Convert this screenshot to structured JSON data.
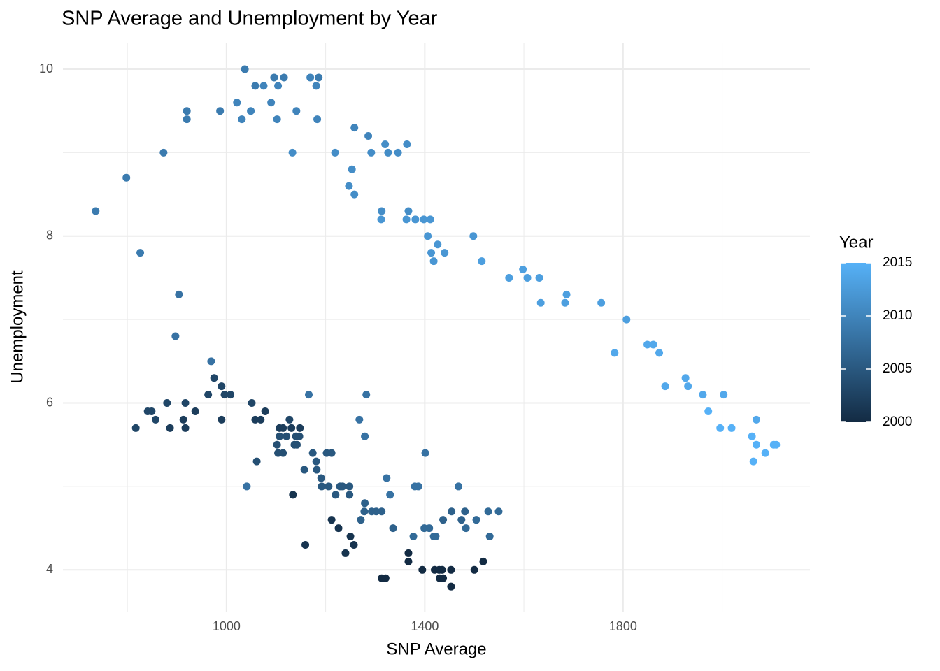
{
  "chart_data": {
    "type": "scatter",
    "title": "SNP Average and Unemployment by Year",
    "x_label": "SNP Average",
    "y_label": "Unemployment",
    "legend_title": "Year",
    "x": [
      736,
      798,
      826,
      873,
      904,
      897,
      920,
      920,
      987,
      1021,
      1031,
      1037,
      1049,
      1058,
      1075,
      1090,
      1096,
      1102,
      1104,
      1116,
      1133,
      1141,
      1169,
      1181,
      1186,
      1183,
      1219,
      1247,
      1253,
      1258,
      1258,
      1286,
      1292,
      1312,
      1313,
      1320,
      1326,
      1346,
      1364,
      1363,
      1367,
      1381,
      1398,
      1411,
      1406,
      1413,
      1418,
      1426,
      1440,
      1498,
      1515,
      1570,
      1598,
      1607,
      1631,
      1634,
      1683,
      1686,
      1756,
      1783,
      1807,
      1849,
      1861,
      1873,
      1885,
      1926,
      1931,
      1961,
      1972,
      2003,
      1996,
      2019,
      2060,
      2063,
      2069,
      2069,
      2087,
      2104,
      2109,
      817,
      841,
      849,
      857,
      880,
      886,
      913,
      917,
      917,
      937,
      963,
      969,
      975,
      990,
      990,
      996,
      1008,
      1041,
      1051,
      1058,
      1061,
      1069,
      1078,
      1102,
      1104,
      1107,
      1107,
      1114,
      1114,
      1121,
      1127,
      1131,
      1134,
      1137,
      1140,
      1142,
      1147,
      1148,
      1157,
      1159,
      1166,
      1174,
      1181,
      1182,
      1191,
      1192,
      1202,
      1206,
      1212,
      1212,
      1220,
      1226,
      1229,
      1234,
      1240,
      1248,
      1248,
      1250,
      1257,
      1268,
      1271,
      1278,
      1279,
      1279,
      1282,
      1293,
      1302,
      1313,
      1313,
      1321,
      1323,
      1330,
      1336,
      1367,
      1367,
      1377,
      1380,
      1387,
      1395,
      1399,
      1401,
      1409,
      1418,
      1422,
      1420,
      1429,
      1430,
      1437,
      1435,
      1437,
      1453,
      1454,
      1453,
      1468,
      1474,
      1481,
      1483,
      1500,
      1504,
      1518,
      1528,
      1531,
      1549
    ],
    "values": [
      8.3,
      8.7,
      7.8,
      9.0,
      7.3,
      6.8,
      9.5,
      9.4,
      9.5,
      9.6,
      9.4,
      10.0,
      9.5,
      9.8,
      9.8,
      9.6,
      9.9,
      9.4,
      9.8,
      9.9,
      9.0,
      9.5,
      9.9,
      9.8,
      9.9,
      9.4,
      9.0,
      8.6,
      8.8,
      8.5,
      9.3,
      9.2,
      9.0,
      8.2,
      8.3,
      9.1,
      9.0,
      9.0,
      9.1,
      8.2,
      8.3,
      8.2,
      8.2,
      8.2,
      8.0,
      7.8,
      7.7,
      7.9,
      7.8,
      8.0,
      7.7,
      7.5,
      7.6,
      7.5,
      7.5,
      7.2,
      7.2,
      7.3,
      7.2,
      6.6,
      7.0,
      6.7,
      6.7,
      6.6,
      6.2,
      6.3,
      6.2,
      6.1,
      5.9,
      6.1,
      5.7,
      5.7,
      5.6,
      5.3,
      5.8,
      5.5,
      5.4,
      5.5,
      5.5,
      5.7,
      5.9,
      5.9,
      5.8,
      6.0,
      5.7,
      5.8,
      6.0,
      5.7,
      5.9,
      6.1,
      6.5,
      6.3,
      6.2,
      5.8,
      6.1,
      6.1,
      5.0,
      6.0,
      5.8,
      5.3,
      5.8,
      5.9,
      5.5,
      5.4,
      5.7,
      5.6,
      5.7,
      5.4,
      5.6,
      5.8,
      5.7,
      4.9,
      5.5,
      5.6,
      5.5,
      5.6,
      5.7,
      5.2,
      4.3,
      6.1,
      5.4,
      5.3,
      5.2,
      5.1,
      5.0,
      5.4,
      5.0,
      5.4,
      4.6,
      4.9,
      4.5,
      5.0,
      5.0,
      4.2,
      5.0,
      4.9,
      4.4,
      4.3,
      5.8,
      4.6,
      4.7,
      4.8,
      5.6,
      6.1,
      4.7,
      4.7,
      4.7,
      3.9,
      3.9,
      5.1,
      4.9,
      4.5,
      4.2,
      4.1,
      4.4,
      5.0,
      5.0,
      4.0,
      4.5,
      5.4,
      4.5,
      4.4,
      4.4,
      4.0,
      4.0,
      3.9,
      3.9,
      4.0,
      4.6,
      4.0,
      4.7,
      3.8,
      5.0,
      4.6,
      4.7,
      4.5,
      4.0,
      4.6,
      4.1,
      4.7,
      4.4,
      4.7
    ],
    "year": [
      2009,
      2009,
      2009,
      2009,
      2008,
      2008,
      2009,
      2009,
      2009,
      2010,
      2010,
      2009,
      2010,
      2009,
      2010,
      2010,
      2009,
      2010,
      2010,
      2009,
      2011,
      2010,
      2010,
      2010,
      2009,
      2010,
      2011,
      2011,
      2011,
      2011,
      2010,
      2010,
      2011,
      2012,
      2011,
      2011,
      2011,
      2011,
      2011,
      2012,
      2011,
      2012,
      2012,
      2012,
      2012,
      2012,
      2012,
      2012,
      2012,
      2012,
      2013,
      2013,
      2013,
      2013,
      2013,
      2013,
      2013,
      2013,
      2013,
      2014,
      2013,
      2014,
      2014,
      2014,
      2014,
      2014,
      2014,
      2014,
      2015,
      2014,
      2015,
      2015,
      2015,
      2015,
      2014,
      2015,
      2015,
      2015,
      2015,
      2003,
      2003,
      2003,
      2003,
      2003,
      2002,
      2002,
      2003,
      2002,
      2002,
      2003,
      2008,
      2003,
      2003,
      2002,
      2003,
      2003,
      2008,
      2003,
      2002,
      2004,
      2002,
      2002,
      2004,
      2004,
      2002,
      2004,
      2002,
      2004,
      2004,
      2003,
      2002,
      2001,
      2004,
      2004,
      2004,
      2004,
      2002,
      2005,
      2001,
      2008,
      2005,
      2005,
      2005,
      2005,
      2005,
      2005,
      2005,
      2005,
      2001,
      2005,
      2001,
      2005,
      2005,
      2001,
      2005,
      2005,
      2001,
      2001,
      2008,
      2006,
      2006,
      2006,
      2008,
      2008,
      2006,
      2006,
      2006,
      2000,
      2000,
      2008,
      2008,
      2006,
      2000,
      2000,
      2007,
      2008,
      2008,
      2000,
      2007,
      2008,
      2007,
      2007,
      2007,
      2000,
      2000,
      2000,
      2000,
      2000,
      2006,
      2000,
      2006,
      2000,
      2008,
      2006,
      2006,
      2007,
      2000,
      2007,
      2000,
      2007,
      2007,
      2007
    ],
    "xlim": [
      670,
      2177
    ],
    "ylim": [
      3.5,
      10.31
    ],
    "xticks": [
      1000,
      1400,
      1800
    ],
    "yticks": [
      4,
      6,
      8,
      10
    ],
    "xminorticks": [
      800,
      1200,
      1600,
      2000
    ],
    "yminorticks": [
      5,
      7,
      9
    ],
    "colorlim": [
      2000,
      2015
    ],
    "colorticks": [
      2000,
      2005,
      2010,
      2015
    ],
    "color_low": "#132b43",
    "color_high": "#56b1f7",
    "grid": true,
    "legend_position": "right"
  }
}
